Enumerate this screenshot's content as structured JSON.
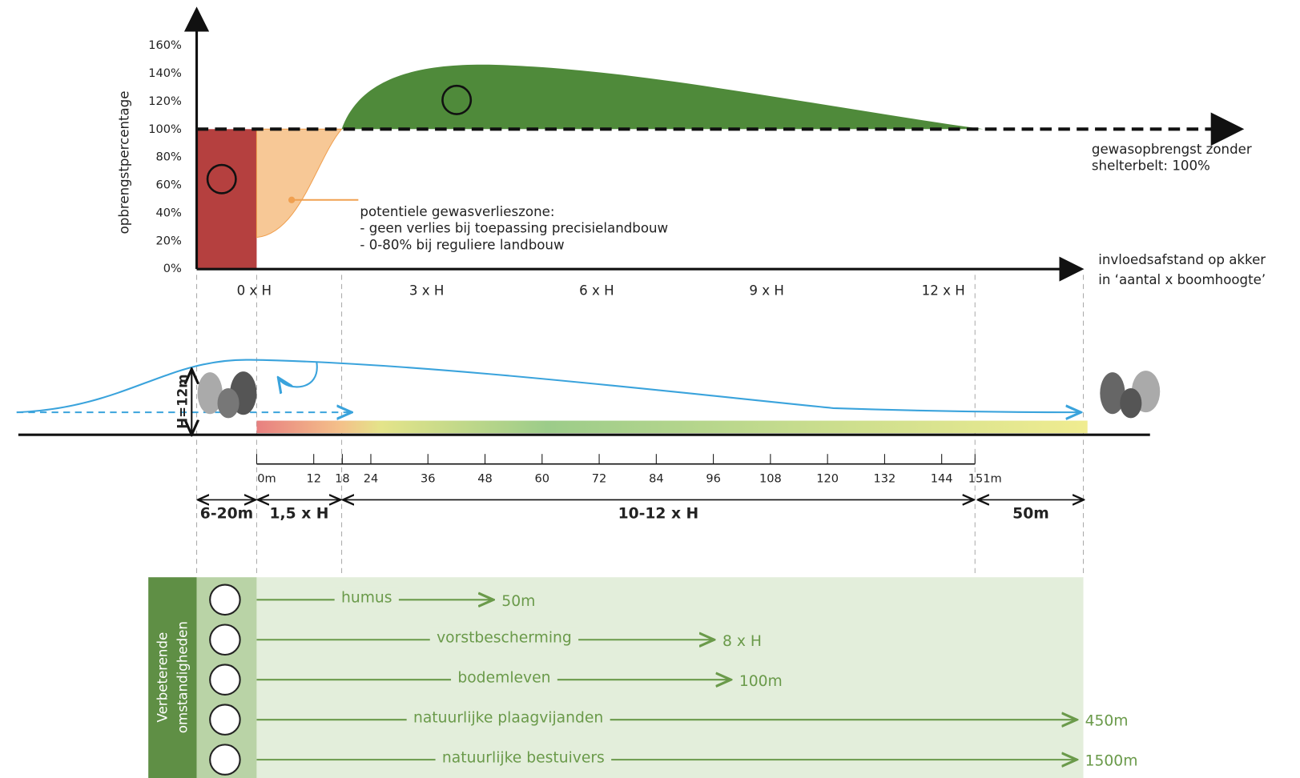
{
  "yield_chart": {
    "y_axis_label": "opbrengstpercentage",
    "y_ticks": [
      "0%",
      "20%",
      "40%",
      "60%",
      "80%",
      "100%",
      "120%",
      "140%",
      "160%"
    ],
    "x_ticks": [
      "0 x H",
      "3 x H",
      "6 x H",
      "9 x H",
      "12 x H"
    ],
    "baseline_label": [
      "gewasopbrengst zonder",
      "shelterbelt: 100%"
    ],
    "x_axis_label": [
      "invloedsafstand op akker",
      "in ‘aantal x boomhoogte’"
    ],
    "annotation": [
      "potentiele gewasverlieszone:",
      "- geen verlies bij toepassing precisielandbouw",
      "- 0-80% bij reguliere landbouw"
    ]
  },
  "cross_section": {
    "height_label": "H=12m",
    "scale_ticks": [
      {
        "value": 0,
        "label": "0m"
      },
      12,
      18,
      24,
      36,
      48,
      60,
      72,
      84,
      96,
      108,
      120,
      132,
      144,
      {
        "value": 151,
        "label": "151m"
      }
    ],
    "spans": [
      "6-20m",
      "1,5 x H",
      "10-12 x H",
      "50m"
    ]
  },
  "benefits": {
    "title": [
      "Verbeterende",
      "omstandigheden"
    ],
    "items": [
      {
        "label": "humus",
        "distance": "50m"
      },
      {
        "label": "vorstbescherming",
        "distance": "8 x H"
      },
      {
        "label": "bodemleven",
        "distance": "100m"
      },
      {
        "label": "natuurlijke plaagvijanden",
        "distance": "450m"
      },
      {
        "label": "natuurlijke bestuivers",
        "distance": "1500m"
      }
    ]
  }
}
